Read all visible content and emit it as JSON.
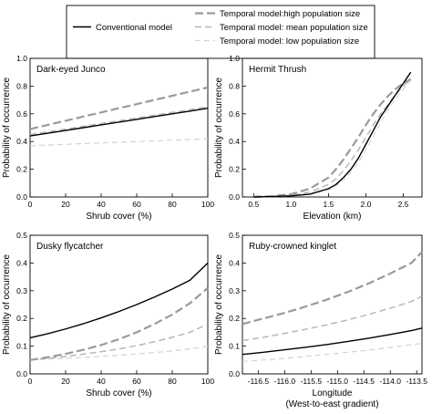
{
  "legend": {
    "conventional": "Conventional model",
    "temporal_high": "Temporal model:high population size",
    "temporal_mean": "Temporal model: mean population size",
    "temporal_low": "Temporal model: low population size"
  },
  "chart_data": [
    {
      "type": "line",
      "title": "Dark-eyed Junco",
      "xlabel": "Shrub cover (%)",
      "ylabel": "Probability of occurrence",
      "xlim": [
        0,
        100
      ],
      "ylim": [
        0,
        1.0
      ],
      "xticks": [
        "0",
        "20",
        "40",
        "60",
        "80",
        "100"
      ],
      "yticks": [
        "0.0",
        "0.2",
        "0.4",
        "0.6",
        "0.8",
        "1.0"
      ],
      "x": [
        0,
        10,
        20,
        30,
        40,
        50,
        60,
        70,
        80,
        90,
        100
      ],
      "series": [
        {
          "name": "Conventional model",
          "values": [
            0.44,
            0.46,
            0.48,
            0.5,
            0.52,
            0.54,
            0.56,
            0.58,
            0.6,
            0.62,
            0.64
          ]
        },
        {
          "name": "Temporal model:high population size",
          "values": [
            0.49,
            0.52,
            0.55,
            0.58,
            0.61,
            0.64,
            0.67,
            0.7,
            0.73,
            0.76,
            0.79
          ]
        },
        {
          "name": "Temporal model: mean population size",
          "values": [
            0.45,
            0.47,
            0.49,
            0.51,
            0.53,
            0.55,
            0.57,
            0.59,
            0.61,
            0.63,
            0.65
          ]
        },
        {
          "name": "Temporal model: low population size",
          "values": [
            0.37,
            0.375,
            0.38,
            0.385,
            0.39,
            0.395,
            0.4,
            0.405,
            0.41,
            0.415,
            0.42
          ]
        }
      ]
    },
    {
      "type": "line",
      "title": "Hermit Thrush",
      "xlabel": "Elevation (km)",
      "ylabel": "Probability of occurrence",
      "xlim": [
        0.35,
        2.75
      ],
      "ylim": [
        0,
        1.0
      ],
      "xticks": [
        "0.5",
        "1.0",
        "1.5",
        "2.0",
        "2.5"
      ],
      "yticks": [
        "0.0",
        "0.2",
        "0.4",
        "0.6",
        "0.8",
        "1.0"
      ],
      "x": [
        0.5,
        0.75,
        1.0,
        1.25,
        1.5,
        1.6,
        1.7,
        1.8,
        1.9,
        2.0,
        2.1,
        2.2,
        2.3,
        2.4,
        2.5,
        2.6
      ],
      "series": [
        {
          "name": "Conventional model",
          "values": [
            0.0,
            0.003,
            0.008,
            0.02,
            0.06,
            0.09,
            0.14,
            0.2,
            0.28,
            0.38,
            0.48,
            0.58,
            0.66,
            0.74,
            0.82,
            0.9
          ]
        },
        {
          "name": "Temporal model:high population size",
          "values": [
            0.001,
            0.006,
            0.02,
            0.06,
            0.14,
            0.2,
            0.27,
            0.35,
            0.43,
            0.52,
            0.6,
            0.67,
            0.73,
            0.78,
            0.82,
            0.85
          ]
        },
        {
          "name": "Temporal model: mean population size",
          "values": [
            0.0,
            0.004,
            0.012,
            0.035,
            0.09,
            0.13,
            0.19,
            0.26,
            0.34,
            0.43,
            0.52,
            0.6,
            0.67,
            0.74,
            0.8,
            0.85
          ]
        },
        {
          "name": "Temporal model: low population size",
          "values": [
            0.0,
            0.002,
            0.006,
            0.018,
            0.05,
            0.08,
            0.12,
            0.18,
            0.25,
            0.34,
            0.44,
            0.54,
            0.63,
            0.71,
            0.78,
            0.84
          ]
        }
      ]
    },
    {
      "type": "line",
      "title": "Dusky flycatcher",
      "xlabel": "Shrub cover (%)",
      "ylabel": "Probability of occurrence",
      "xlim": [
        0,
        100
      ],
      "ylim": [
        0,
        0.5
      ],
      "xticks": [
        "0",
        "20",
        "40",
        "60",
        "80",
        "100"
      ],
      "yticks": [
        "0.0",
        "0.1",
        "0.2",
        "0.3",
        "0.4",
        "0.5"
      ],
      "x": [
        0,
        10,
        20,
        30,
        40,
        50,
        60,
        70,
        80,
        90,
        100
      ],
      "series": [
        {
          "name": "Conventional model",
          "values": [
            0.13,
            0.145,
            0.162,
            0.181,
            0.202,
            0.225,
            0.25,
            0.277,
            0.306,
            0.338,
            0.4
          ]
        },
        {
          "name": "Temporal model:high population size",
          "values": [
            0.05,
            0.06,
            0.072,
            0.087,
            0.104,
            0.125,
            0.15,
            0.18,
            0.214,
            0.255,
            0.31
          ]
        },
        {
          "name": "Temporal model: mean population size",
          "values": [
            0.05,
            0.056,
            0.063,
            0.071,
            0.08,
            0.09,
            0.102,
            0.116,
            0.132,
            0.15,
            0.18
          ]
        },
        {
          "name": "Temporal model: low population size",
          "values": [
            0.05,
            0.053,
            0.056,
            0.059,
            0.063,
            0.067,
            0.072,
            0.077,
            0.083,
            0.09,
            0.1
          ]
        }
      ]
    },
    {
      "type": "line",
      "title": "Ruby-crowned kinglet",
      "xlabel": "Longitude",
      "xlabel2": "(West-to-east gradient)",
      "ylabel": "Probability of occurrence",
      "xlim": [
        -116.8,
        -113.4
      ],
      "ylim": [
        0,
        0.5
      ],
      "xticks": [
        "-116.5",
        "-116.0",
        "-115.5",
        "-115.0",
        "-114.5",
        "-114.0",
        "-113.5"
      ],
      "yticks": [
        "0.0",
        "0.1",
        "0.2",
        "0.3",
        "0.4",
        "0.5"
      ],
      "x": [
        -116.8,
        -116.4,
        -116.0,
        -115.6,
        -115.2,
        -114.8,
        -114.4,
        -114.0,
        -113.6,
        -113.4
      ],
      "series": [
        {
          "name": "Conventional model",
          "values": [
            0.07,
            0.078,
            0.087,
            0.096,
            0.106,
            0.117,
            0.129,
            0.142,
            0.156,
            0.165
          ]
        },
        {
          "name": "Temporal model:high population size",
          "values": [
            0.18,
            0.2,
            0.22,
            0.243,
            0.268,
            0.296,
            0.327,
            0.362,
            0.4,
            0.44
          ]
        },
        {
          "name": "Temporal model: mean population size",
          "values": [
            0.12,
            0.132,
            0.146,
            0.161,
            0.177,
            0.195,
            0.215,
            0.237,
            0.261,
            0.28
          ]
        },
        {
          "name": "Temporal model: low population size",
          "values": [
            0.045,
            0.05,
            0.056,
            0.063,
            0.07,
            0.078,
            0.086,
            0.095,
            0.105,
            0.11
          ]
        }
      ]
    }
  ]
}
